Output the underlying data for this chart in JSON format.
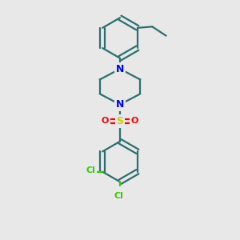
{
  "bg_color": "#e8e8e8",
  "bond_color": "#2d6e6e",
  "bond_lw": 1.6,
  "atom_colors": {
    "N": "#0000ff",
    "S": "#cccc00",
    "O": "#ff0000",
    "Cl": "#33cc00",
    "C": "#2d6e6e"
  },
  "font_size": 8,
  "fig_size": [
    3.0,
    3.0
  ],
  "dpi": 100,
  "xlim": [
    0,
    10
  ],
  "ylim": [
    0,
    10
  ]
}
